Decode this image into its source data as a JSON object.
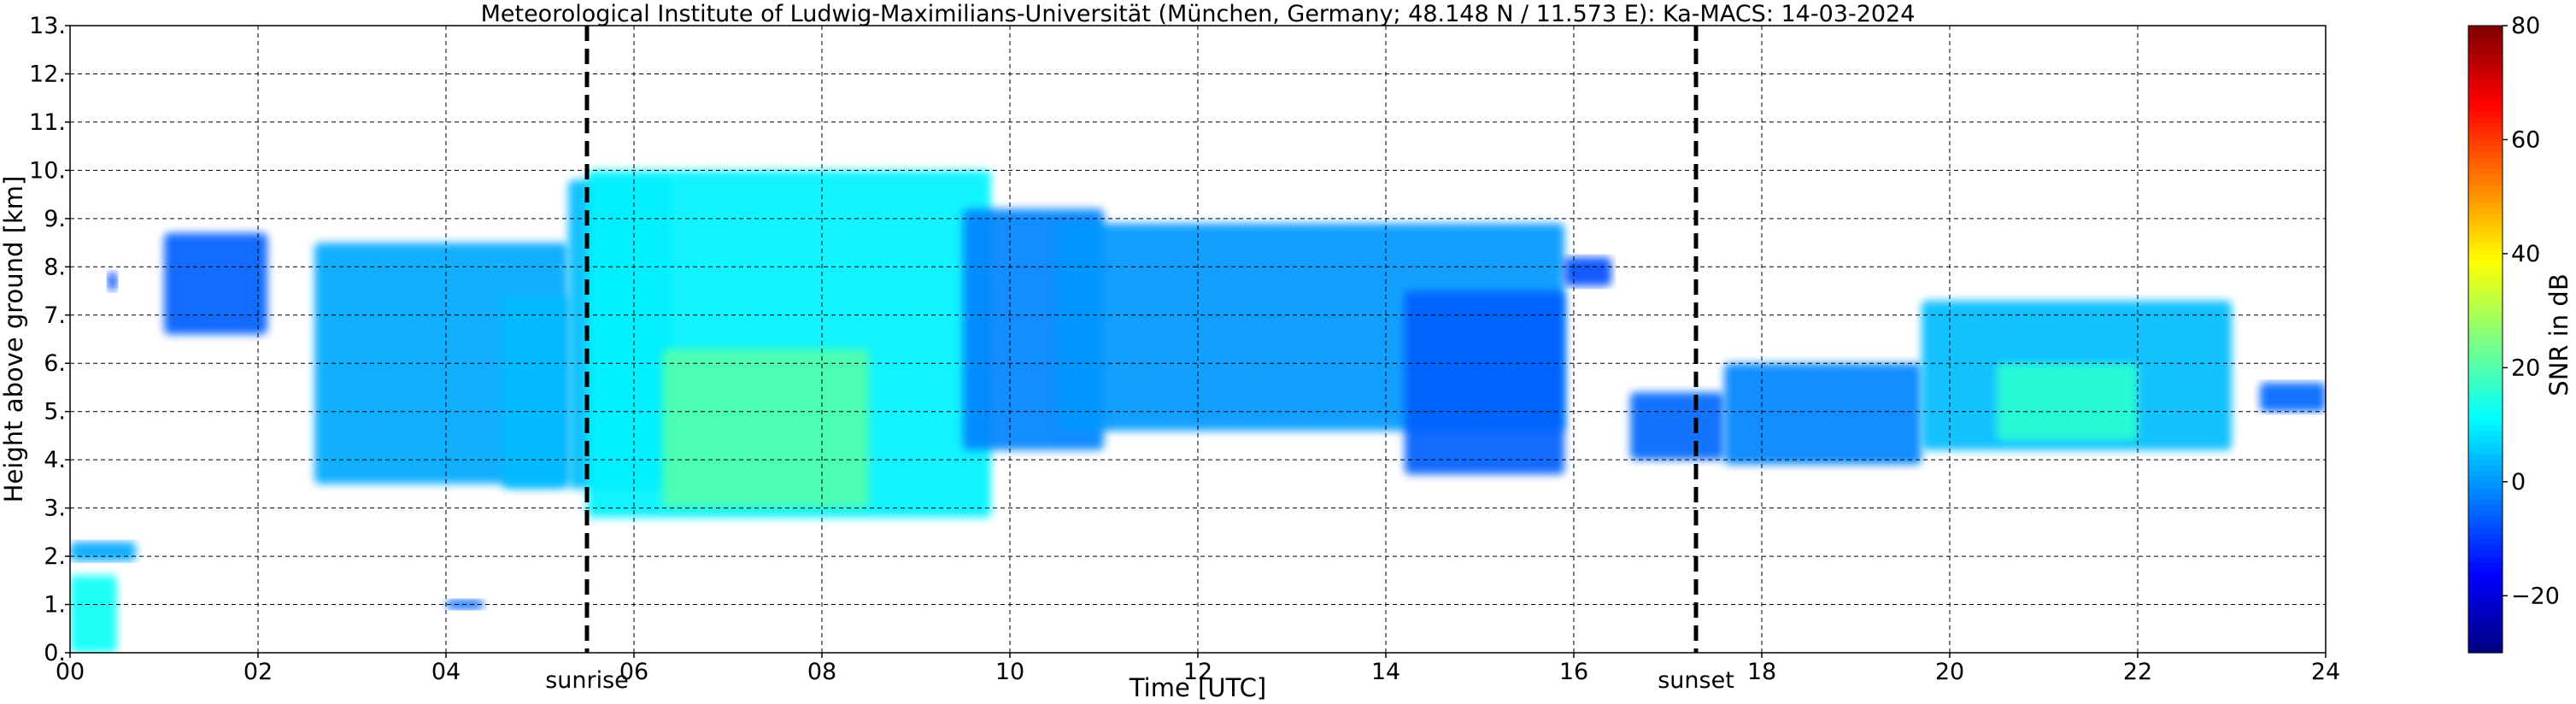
{
  "chart_data": {
    "type": "heatmap",
    "title": "Meteorological Institute of Ludwig-Maximilians-Universität (München, Germany; 48.148 N / 11.573 E):    Ka-MACS: 14-03-2024",
    "xlabel": "Time [UTC]",
    "ylabel": "Height above ground [km]",
    "xlim": [
      0,
      24
    ],
    "ylim": [
      0,
      13
    ],
    "x_ticks": [
      "00",
      "02",
      "04",
      "06",
      "08",
      "10",
      "12",
      "14",
      "16",
      "18",
      "20",
      "22",
      "24"
    ],
    "y_ticks": [
      "0.",
      "1.",
      "2.",
      "3.",
      "4.",
      "5.",
      "6.",
      "7.",
      "8.",
      "9.",
      "10.",
      "11.",
      "12.",
      "13."
    ],
    "grid": true,
    "colorbar": {
      "label": "SNR in dB",
      "range": [
        -30,
        80
      ],
      "ticks": [
        "80",
        "60",
        "40",
        "20",
        "0",
        "−20"
      ],
      "tick_values": [
        80,
        60,
        40,
        20,
        0,
        -20
      ],
      "colormap": "jet"
    },
    "events": [
      {
        "label": "sunrise",
        "time": 5.5
      },
      {
        "label": "sunset",
        "time": 17.3
      }
    ],
    "echo_regions": [
      {
        "t": [
          0.0,
          0.5
        ],
        "bottom": 0.0,
        "top": 1.6,
        "snr": 12
      },
      {
        "t": [
          0.0,
          0.7
        ],
        "bottom": 1.9,
        "top": 2.3,
        "snr": 2
      },
      {
        "t": [
          0.4,
          0.5
        ],
        "bottom": 7.5,
        "top": 7.9,
        "snr": -8
      },
      {
        "t": [
          1.0,
          2.1
        ],
        "bottom": 6.6,
        "top": 8.7,
        "snr": -6
      },
      {
        "t": [
          2.6,
          5.3
        ],
        "bottom": 3.5,
        "top": 8.5,
        "snr": 2
      },
      {
        "t": [
          4.0,
          4.4
        ],
        "bottom": 0.9,
        "top": 1.1,
        "snr": -5
      },
      {
        "t": [
          4.6,
          5.3
        ],
        "bottom": 3.4,
        "top": 7.4,
        "snr": 4
      },
      {
        "t": [
          5.3,
          6.4
        ],
        "bottom": 3.4,
        "top": 9.8,
        "snr": 4
      },
      {
        "t": [
          5.5,
          9.8
        ],
        "bottom": 2.8,
        "top": 10.0,
        "snr": 10
      },
      {
        "t": [
          6.3,
          8.5
        ],
        "bottom": 3.0,
        "top": 6.3,
        "snr": 20
      },
      {
        "t": [
          9.5,
          11.0
        ],
        "bottom": 4.2,
        "top": 9.2,
        "snr": -2
      },
      {
        "t": [
          10.5,
          15.9
        ],
        "bottom": 4.6,
        "top": 8.9,
        "snr": 0
      },
      {
        "t": [
          14.2,
          15.9
        ],
        "bottom": 3.7,
        "top": 7.5,
        "snr": -6
      },
      {
        "t": [
          15.9,
          16.4
        ],
        "bottom": 7.6,
        "top": 8.2,
        "snr": -8
      },
      {
        "t": [
          16.6,
          17.6
        ],
        "bottom": 4.0,
        "top": 5.4,
        "snr": -5
      },
      {
        "t": [
          17.6,
          19.7
        ],
        "bottom": 3.9,
        "top": 6.0,
        "snr": -2
      },
      {
        "t": [
          19.7,
          23.0
        ],
        "bottom": 4.2,
        "top": 7.3,
        "snr": 4
      },
      {
        "t": [
          20.5,
          22.0
        ],
        "bottom": 4.4,
        "top": 6.0,
        "snr": 16
      },
      {
        "t": [
          23.3,
          24.0
        ],
        "bottom": 5.0,
        "top": 5.6,
        "snr": -5
      }
    ]
  }
}
